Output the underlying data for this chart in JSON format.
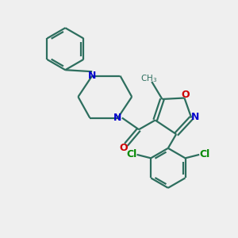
{
  "background_color": "#efefef",
  "bond_color": "#2d6e5e",
  "n_color": "#0000cc",
  "o_color": "#cc0000",
  "cl_color": "#008800",
  "line_width": 1.6,
  "figsize": [
    3.0,
    3.0
  ],
  "dpi": 100,
  "xlim": [
    0,
    10
  ],
  "ylim": [
    0,
    10
  ]
}
